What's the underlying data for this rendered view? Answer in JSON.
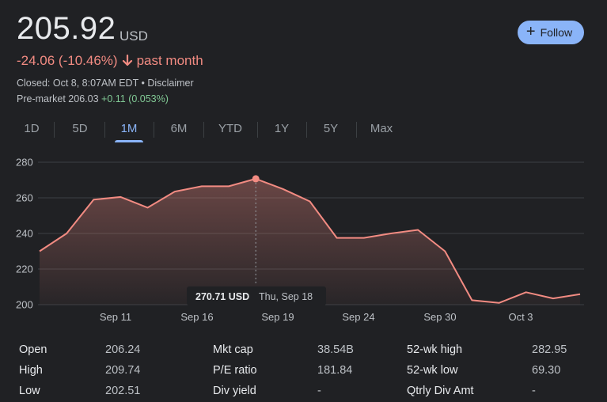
{
  "quote": {
    "price": "205.92",
    "currency": "USD",
    "change": "-24.06 (-10.46%)",
    "period": "past month",
    "closed": "Closed: Oct 8, 8:07AM EDT • Disclaimer",
    "premarket_label": "Pre-market 206.03",
    "premarket_change": "+0.11 (0.053%)"
  },
  "follow": {
    "label": "Follow",
    "icon": "plus-icon"
  },
  "colors": {
    "accent": "#8ab4f8",
    "negative": "#f28b82",
    "positive": "#81c995",
    "background": "#202124"
  },
  "tabs": [
    "1D",
    "5D",
    "1M",
    "6M",
    "YTD",
    "1Y",
    "5Y",
    "Max"
  ],
  "active_tab": "1M",
  "chart_data": {
    "type": "area",
    "y_ticks": [
      "280",
      "260",
      "240",
      "220",
      "200"
    ],
    "ylim": [
      200,
      280
    ],
    "x_labels": [
      "Sep 11",
      "Sep 16",
      "Sep 19",
      "Sep 24",
      "Sep 30",
      "Oct 3"
    ],
    "values": [
      230,
      240,
      259,
      260.5,
      254.5,
      263.5,
      266.5,
      266.5,
      270.71,
      265,
      258,
      237.5,
      237.5,
      240,
      242,
      230,
      202.5,
      201,
      207,
      203.5,
      205.92
    ],
    "tooltip": {
      "value": "270.71 USD",
      "date": "Thu, Sep 18"
    },
    "grid": true,
    "legend": "none"
  },
  "stats": [
    {
      "label": "Open",
      "value": "206.24"
    },
    {
      "label": "High",
      "value": "209.74"
    },
    {
      "label": "Low",
      "value": "202.51"
    },
    {
      "label": "Mkt cap",
      "value": "38.54B"
    },
    {
      "label": "P/E ratio",
      "value": "181.84"
    },
    {
      "label": "Div yield",
      "value": "-"
    },
    {
      "label": "52-wk high",
      "value": "282.95"
    },
    {
      "label": "52-wk low",
      "value": "69.30"
    },
    {
      "label": "Qtrly Div Amt",
      "value": "-"
    }
  ]
}
